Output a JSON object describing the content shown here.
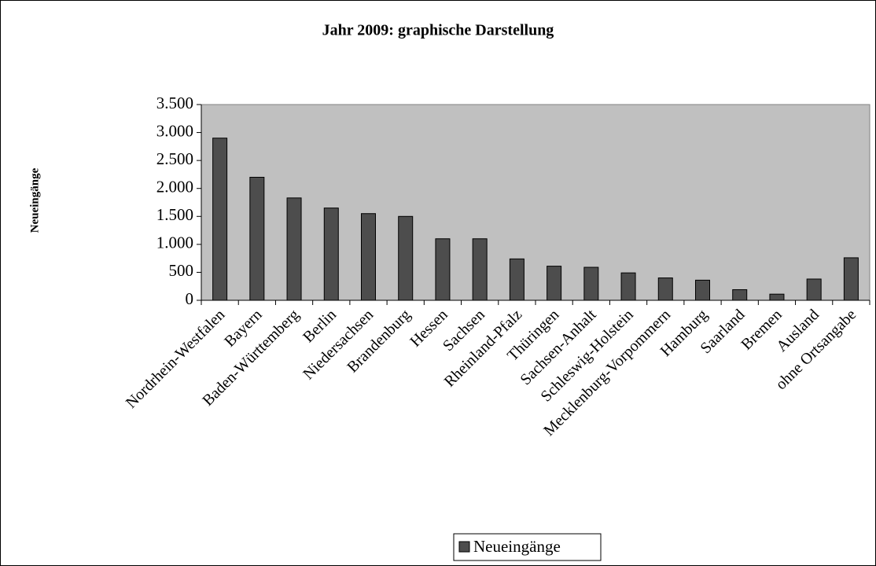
{
  "chart_data": {
    "type": "bar",
    "title": "Jahr 2009: graphische Darstellung",
    "y_label": "Neueingänge",
    "categories": [
      "Nordrhein-Westfalen",
      "Bayern",
      "Baden-Württemberg",
      "Berlin",
      "Niedersachsen",
      "Brandenburg",
      "Hessen",
      "Sachsen",
      "Rheinland-Pfalz",
      "Thüringen",
      "Sachsen-Anhalt",
      "Schleswig-Holstein",
      "Mecklenburg-Vorpommern",
      "Hamburg",
      "Saarland",
      "Bremen",
      "Ausland",
      "ohne Ortsangabe"
    ],
    "series": [
      {
        "name": "Neueingänge",
        "color": "#4d4d4d",
        "values": [
          2900,
          2200,
          1830,
          1650,
          1550,
          1500,
          1100,
          1100,
          740,
          610,
          590,
          490,
          400,
          360,
          190,
          110,
          380,
          760
        ]
      }
    ],
    "ylim": [
      0,
      3500
    ],
    "yticks": [
      0,
      {
        "value": 500,
        "label": "500"
      },
      {
        "value": 1000,
        "label": "1.000"
      },
      {
        "value": 1500,
        "label": "1.500"
      },
      {
        "value": 2000,
        "label": "2.000"
      },
      {
        "value": 2500,
        "label": "2.500"
      },
      {
        "value": 3000,
        "label": "3.000"
      },
      {
        "value": 3500,
        "label": "3.500"
      }
    ],
    "legend": "bottom"
  }
}
